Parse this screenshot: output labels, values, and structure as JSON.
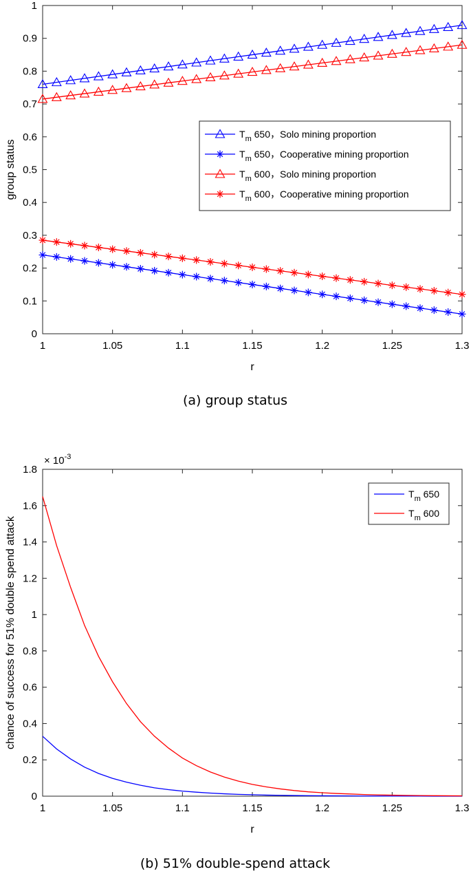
{
  "chart_data": [
    {
      "type": "line",
      "title": "",
      "caption": "(a)  group status",
      "xlabel": "r",
      "ylabel": "group status",
      "xlim": [
        1,
        1.3
      ],
      "ylim": [
        0,
        1
      ],
      "x_ticks": [
        "1",
        "1.05",
        "1.1",
        "1.15",
        "1.2",
        "1.25",
        "1.3"
      ],
      "y_ticks": [
        "0",
        "0.1",
        "0.2",
        "0.3",
        "0.4",
        "0.5",
        "0.6",
        "0.7",
        "0.8",
        "0.9",
        "1"
      ],
      "legend_position": "center-right",
      "x": [
        1,
        1.01,
        1.02,
        1.03,
        1.04,
        1.05,
        1.06,
        1.07,
        1.08,
        1.09,
        1.1,
        1.11,
        1.12,
        1.13,
        1.14,
        1.15,
        1.16,
        1.17,
        1.18,
        1.19,
        1.2,
        1.21,
        1.22,
        1.23,
        1.24,
        1.25,
        1.26,
        1.27,
        1.28,
        1.29,
        1.3
      ],
      "series": [
        {
          "name": "T_m 650, Solo mining proportion",
          "legend_main": "T",
          "legend_sub": "m",
          "legend_rest": " 650，Solo mining proportion",
          "color": "#0000ff",
          "marker": "triangle",
          "values": [
            0.76,
            0.766,
            0.772,
            0.778,
            0.784,
            0.79,
            0.796,
            0.802,
            0.808,
            0.814,
            0.82,
            0.826,
            0.832,
            0.838,
            0.844,
            0.85,
            0.856,
            0.862,
            0.868,
            0.874,
            0.88,
            0.886,
            0.892,
            0.898,
            0.904,
            0.91,
            0.916,
            0.922,
            0.928,
            0.934,
            0.94
          ]
        },
        {
          "name": "T_m 650, Cooperative mining proportion",
          "legend_main": "T",
          "legend_sub": "m",
          "legend_rest": " 650，Cooperative mining proportion",
          "color": "#0000ff",
          "marker": "star",
          "values": [
            0.24,
            0.234,
            0.228,
            0.222,
            0.216,
            0.21,
            0.204,
            0.198,
            0.192,
            0.186,
            0.18,
            0.174,
            0.168,
            0.162,
            0.156,
            0.15,
            0.144,
            0.138,
            0.132,
            0.126,
            0.12,
            0.114,
            0.108,
            0.102,
            0.096,
            0.09,
            0.084,
            0.078,
            0.072,
            0.066,
            0.06
          ]
        },
        {
          "name": "T_m 600, Solo mining proportion",
          "legend_main": "T",
          "legend_sub": "m",
          "legend_rest": " 600，Solo mining proportion",
          "color": "#ff0000",
          "marker": "triangle",
          "values": [
            0.715,
            0.7205,
            0.726,
            0.7315,
            0.737,
            0.7425,
            0.748,
            0.7535,
            0.759,
            0.7645,
            0.77,
            0.7755,
            0.781,
            0.7865,
            0.792,
            0.7975,
            0.803,
            0.8085,
            0.814,
            0.8195,
            0.825,
            0.8305,
            0.836,
            0.8415,
            0.847,
            0.8525,
            0.858,
            0.8635,
            0.869,
            0.8745,
            0.88
          ]
        },
        {
          "name": "T_m 600, Cooperative mining proportion",
          "legend_main": "T",
          "legend_sub": "m",
          "legend_rest": " 600，Cooperative mining proportion",
          "color": "#ff0000",
          "marker": "star",
          "values": [
            0.285,
            0.2795,
            0.274,
            0.2685,
            0.263,
            0.2575,
            0.252,
            0.2465,
            0.241,
            0.2355,
            0.23,
            0.2245,
            0.219,
            0.2135,
            0.208,
            0.2025,
            0.197,
            0.1915,
            0.186,
            0.1805,
            0.175,
            0.1695,
            0.164,
            0.1585,
            0.153,
            0.1475,
            0.142,
            0.1365,
            0.131,
            0.1255,
            0.12
          ]
        }
      ]
    },
    {
      "type": "line",
      "title": "",
      "caption": "(b)  51% double-spend attack",
      "xlabel": "r",
      "ylabel": "chance of success for 51% double spend attack",
      "exponent_base": "× 10",
      "exponent_power": "-3",
      "xlim": [
        1,
        1.3
      ],
      "ylim": [
        0,
        1.8
      ],
      "x_ticks": [
        "1",
        "1.05",
        "1.1",
        "1.15",
        "1.2",
        "1.25",
        "1.3"
      ],
      "y_ticks": [
        "0",
        "0.2",
        "0.4",
        "0.6",
        "0.8",
        "1",
        "1.2",
        "1.4",
        "1.6",
        "1.8"
      ],
      "legend_position": "top-right",
      "x": [
        1,
        1.01,
        1.02,
        1.03,
        1.04,
        1.05,
        1.06,
        1.07,
        1.08,
        1.09,
        1.1,
        1.11,
        1.12,
        1.13,
        1.14,
        1.15,
        1.16,
        1.17,
        1.18,
        1.19,
        1.2,
        1.21,
        1.22,
        1.23,
        1.24,
        1.25,
        1.26,
        1.27,
        1.28,
        1.29,
        1.3
      ],
      "series": [
        {
          "name": "T_m 650",
          "legend_main": "T",
          "legend_sub": "m",
          "legend_rest": " 650",
          "color": "#0000ff",
          "values": [
            0.33,
            0.26,
            0.205,
            0.16,
            0.125,
            0.098,
            0.077,
            0.06,
            0.046,
            0.036,
            0.028,
            0.022,
            0.017,
            0.013,
            0.01,
            0.008,
            0.006,
            0.0047,
            0.0036,
            0.0028,
            0.0022,
            0.0017,
            0.0013,
            0.001,
            0.0008,
            0.0006,
            0.0005,
            0.0004,
            0.0003,
            0.0002,
            0.0002
          ]
        },
        {
          "name": "T_m 600",
          "legend_main": "T",
          "legend_sub": "m",
          "legend_rest": " 600",
          "color": "#ff0000",
          "values": [
            1.65,
            1.38,
            1.15,
            0.94,
            0.77,
            0.63,
            0.51,
            0.41,
            0.33,
            0.265,
            0.21,
            0.168,
            0.133,
            0.105,
            0.083,
            0.065,
            0.051,
            0.04,
            0.031,
            0.024,
            0.019,
            0.015,
            0.012,
            0.009,
            0.007,
            0.0055,
            0.0043,
            0.0034,
            0.0027,
            0.0021,
            0.0017
          ]
        }
      ]
    }
  ]
}
